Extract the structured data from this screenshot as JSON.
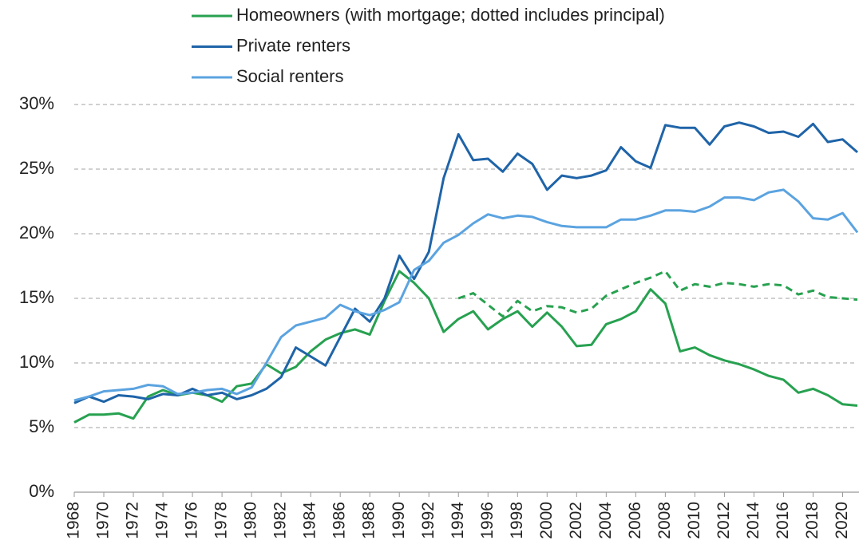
{
  "chart_data": {
    "type": "line",
    "x": [
      1968,
      1969,
      1970,
      1971,
      1972,
      1973,
      1974,
      1975,
      1976,
      1977,
      1978,
      1979,
      1980,
      1981,
      1982,
      1983,
      1984,
      1985,
      1986,
      1987,
      1988,
      1989,
      1990,
      1991,
      1992,
      1993,
      1994,
      1995,
      1996,
      1997,
      1998,
      1999,
      2000,
      2001,
      2002,
      2003,
      2004,
      2005,
      2006,
      2007,
      2008,
      2009,
      2010,
      2011,
      2012,
      2013,
      2014,
      2015,
      2016,
      2017,
      2018,
      2019,
      2020,
      2021
    ],
    "xlim": [
      1968,
      2021
    ],
    "xticks": [
      1968,
      1970,
      1972,
      1974,
      1976,
      1978,
      1980,
      1982,
      1984,
      1986,
      1988,
      1990,
      1992,
      1994,
      1996,
      1998,
      2000,
      2002,
      2004,
      2006,
      2008,
      2010,
      2012,
      2014,
      2016,
      2018,
      2020
    ],
    "ylim": [
      0,
      30
    ],
    "yticks": [
      {
        "value": 0,
        "label": "0%"
      },
      {
        "value": 5,
        "label": "5%"
      },
      {
        "value": 10,
        "label": "10%"
      },
      {
        "value": 15,
        "label": "15%"
      },
      {
        "value": 20,
        "label": "20%"
      },
      {
        "value": 25,
        "label": "25%"
      },
      {
        "value": 30,
        "label": "30%"
      }
    ],
    "grid": true,
    "series": [
      {
        "name": "Homeowners (with mortgage; dotted includes principal)",
        "color": "#27a150",
        "values": [
          5.4,
          6.0,
          6.0,
          6.1,
          5.7,
          7.4,
          7.9,
          7.5,
          7.7,
          7.5,
          7.0,
          8.2,
          8.4,
          9.9,
          9.2,
          9.7,
          10.9,
          11.8,
          12.3,
          12.6,
          12.2,
          14.8,
          17.1,
          16.2,
          15.0,
          12.4,
          13.4,
          14.0,
          12.6,
          13.4,
          14.0,
          12.8,
          13.9,
          12.8,
          11.3,
          11.4,
          13.0,
          13.4,
          14.0,
          15.7,
          14.6,
          10.9,
          11.2,
          10.6,
          10.2,
          9.9,
          9.5,
          9.0,
          8.7,
          7.7,
          8.0,
          7.5,
          6.8,
          6.7
        ],
        "dotted_values": [
          null,
          null,
          null,
          null,
          null,
          null,
          null,
          null,
          null,
          null,
          null,
          null,
          null,
          null,
          null,
          null,
          null,
          null,
          null,
          null,
          null,
          null,
          null,
          null,
          null,
          null,
          15.0,
          15.4,
          14.5,
          13.6,
          14.8,
          14.0,
          14.4,
          14.3,
          13.9,
          14.2,
          15.2,
          15.7,
          16.2,
          16.6,
          17.1,
          15.6,
          16.1,
          15.9,
          16.2,
          16.1,
          15.9,
          16.1,
          16.0,
          15.3,
          15.6,
          15.1,
          15.0,
          14.9
        ]
      },
      {
        "name": "Private renters",
        "color": "#1f64a8",
        "values": [
          6.9,
          7.4,
          7.0,
          7.5,
          7.4,
          7.2,
          7.6,
          7.5,
          8.0,
          7.5,
          7.7,
          7.2,
          7.5,
          8.0,
          8.9,
          11.2,
          10.5,
          9.8,
          12.0,
          14.2,
          13.2,
          15.0,
          18.3,
          16.5,
          18.6,
          24.3,
          27.7,
          25.7,
          25.8,
          24.8,
          26.2,
          25.4,
          23.4,
          24.5,
          24.3,
          24.5,
          24.9,
          26.7,
          25.6,
          25.1,
          28.4,
          28.2,
          28.2,
          26.9,
          28.3,
          28.6,
          28.3,
          27.8,
          27.9,
          27.5,
          28.5,
          27.1,
          27.3,
          26.3
        ]
      },
      {
        "name": "Social renters",
        "color": "#5ba3e0",
        "values": [
          7.1,
          7.4,
          7.8,
          7.9,
          8.0,
          8.3,
          8.2,
          7.6,
          7.7,
          7.9,
          8.0,
          7.6,
          8.1,
          10.0,
          12.0,
          12.9,
          13.2,
          13.5,
          14.5,
          14.0,
          13.7,
          14.1,
          14.7,
          17.2,
          17.9,
          19.3,
          19.9,
          20.8,
          21.5,
          21.2,
          21.4,
          21.3,
          20.9,
          20.6,
          20.5,
          20.5,
          20.5,
          21.1,
          21.1,
          21.4,
          21.8,
          21.8,
          21.7,
          22.1,
          22.8,
          22.8,
          22.6,
          23.2,
          23.4,
          22.5,
          21.2,
          21.1,
          21.6,
          20.1
        ]
      }
    ]
  }
}
